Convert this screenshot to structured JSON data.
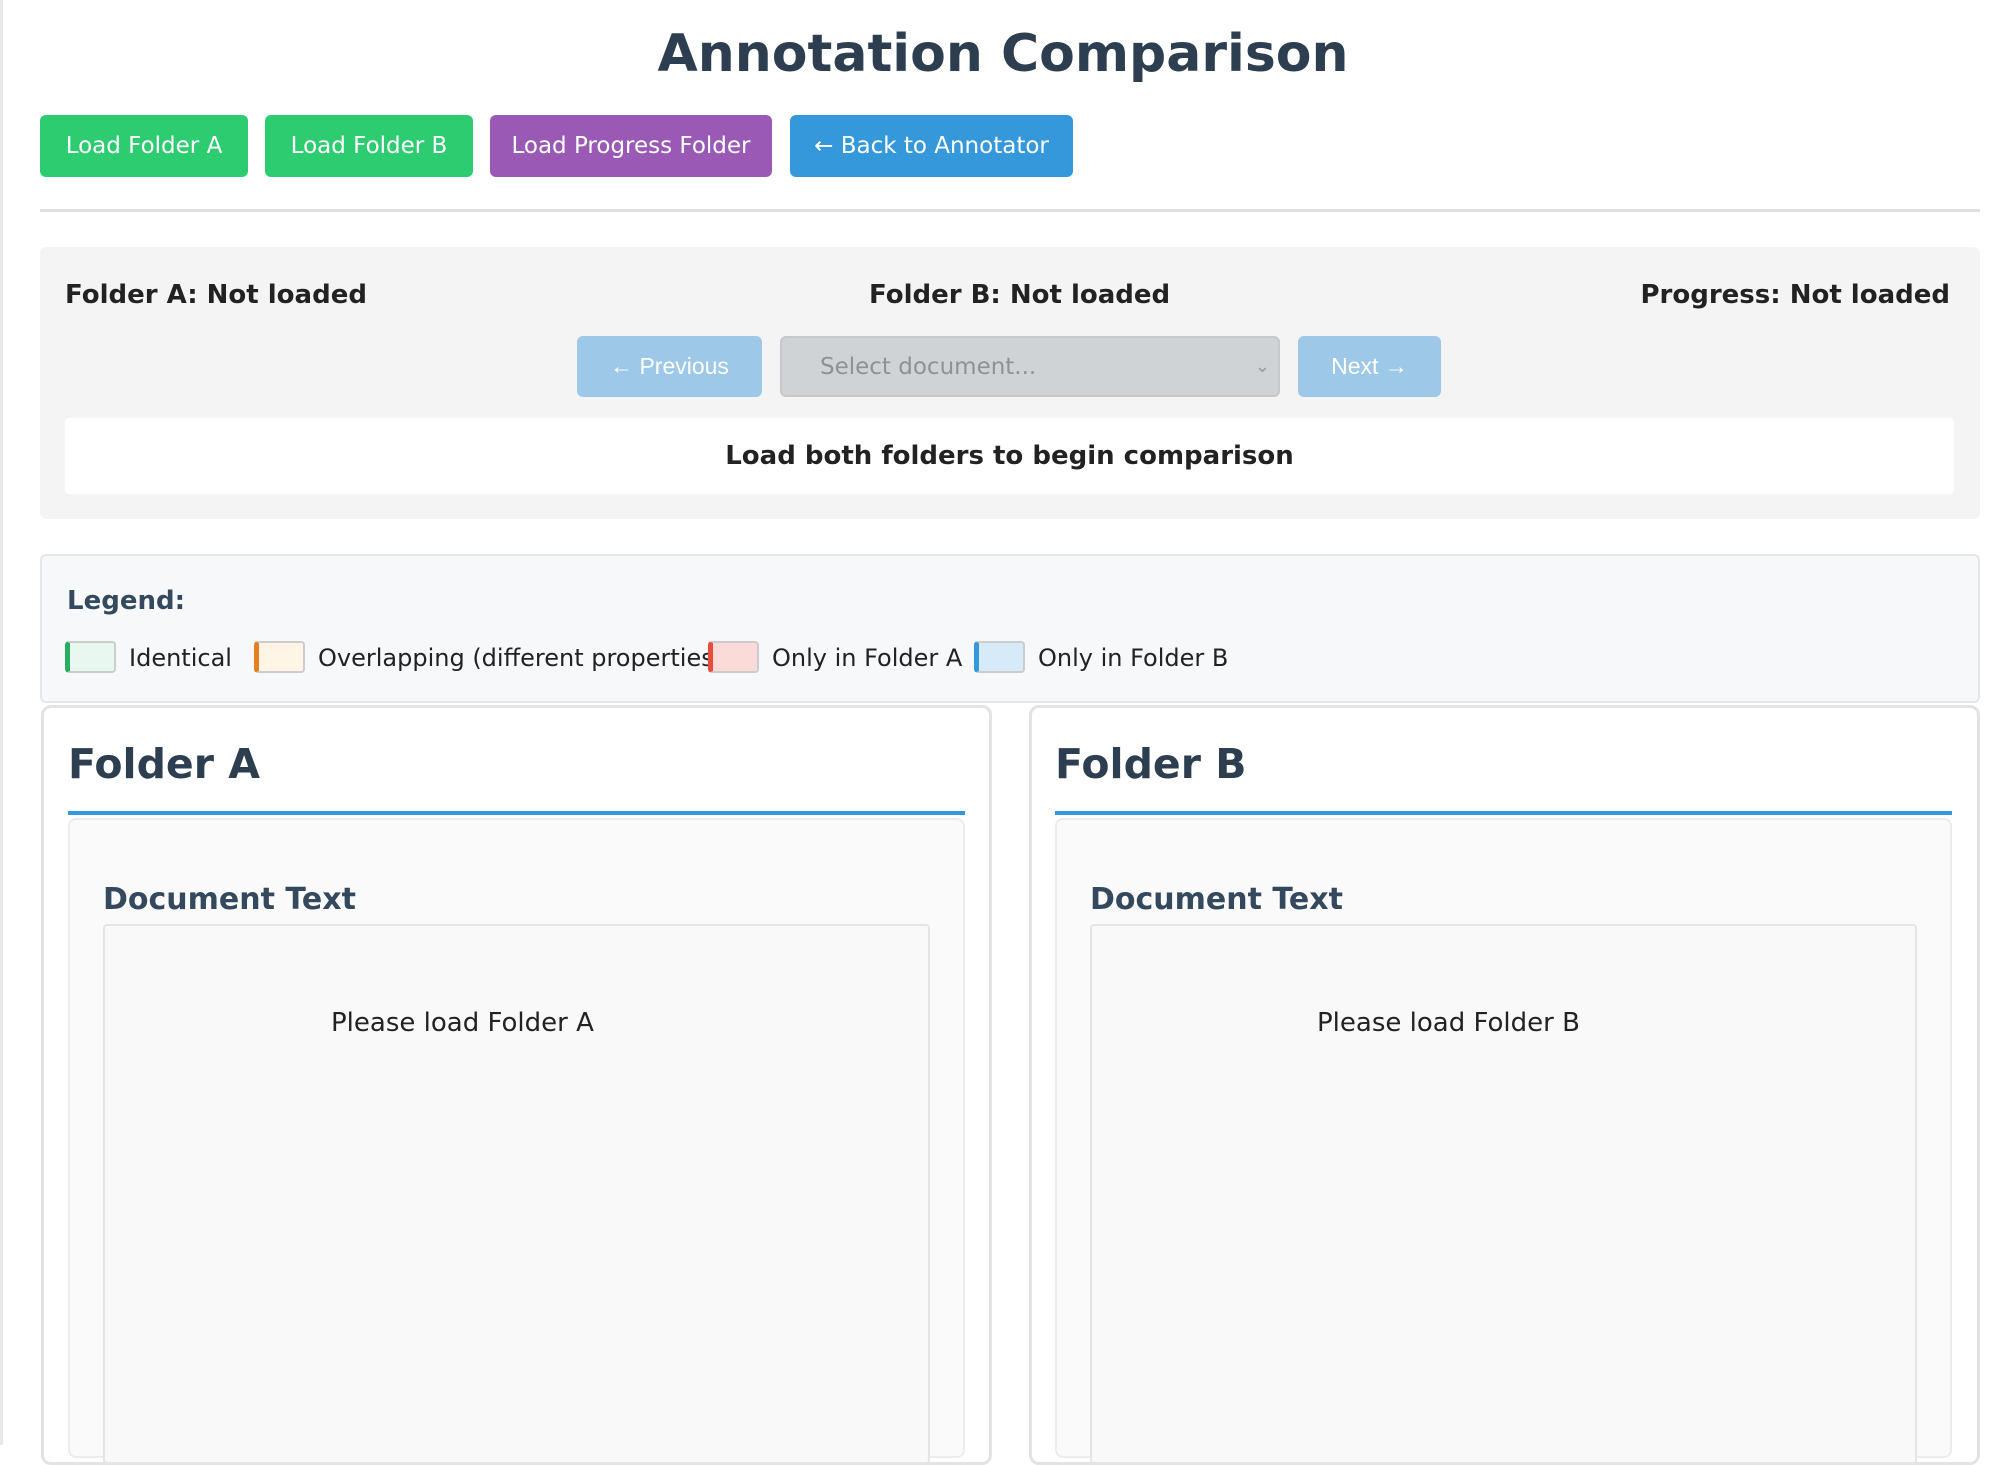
{
  "title": "Annotation Comparison",
  "toolbar": {
    "load_a": "Load Folder A",
    "load_b": "Load Folder B",
    "load_progress": "Load Progress Folder",
    "back": "← Back to Annotator"
  },
  "colors": {
    "green": "#2ecc71",
    "purple": "#9b59b6",
    "blue": "#3498db"
  },
  "status": {
    "folder_a": "Folder A: Not loaded",
    "folder_b": "Folder B: Not loaded",
    "progress": "Progress: Not loaded"
  },
  "nav": {
    "previous": "← Previous",
    "select_placeholder": "Select document...",
    "next": "Next →"
  },
  "message": "Load both folders to begin comparison",
  "legend": {
    "title": "Legend:",
    "items": [
      {
        "label": "Identical",
        "color": "#27ae60"
      },
      {
        "label": "Overlapping (different properties)",
        "color": "#e67e22"
      },
      {
        "label": "Only in Folder A",
        "color": "#e74c3c"
      },
      {
        "label": "Only in Folder B",
        "color": "#3498db"
      }
    ]
  },
  "panels": [
    {
      "title": "Folder A",
      "section": "Document Text",
      "placeholder": "Please load Folder A"
    },
    {
      "title": "Folder B",
      "section": "Document Text",
      "placeholder": "Please load Folder B"
    }
  ]
}
